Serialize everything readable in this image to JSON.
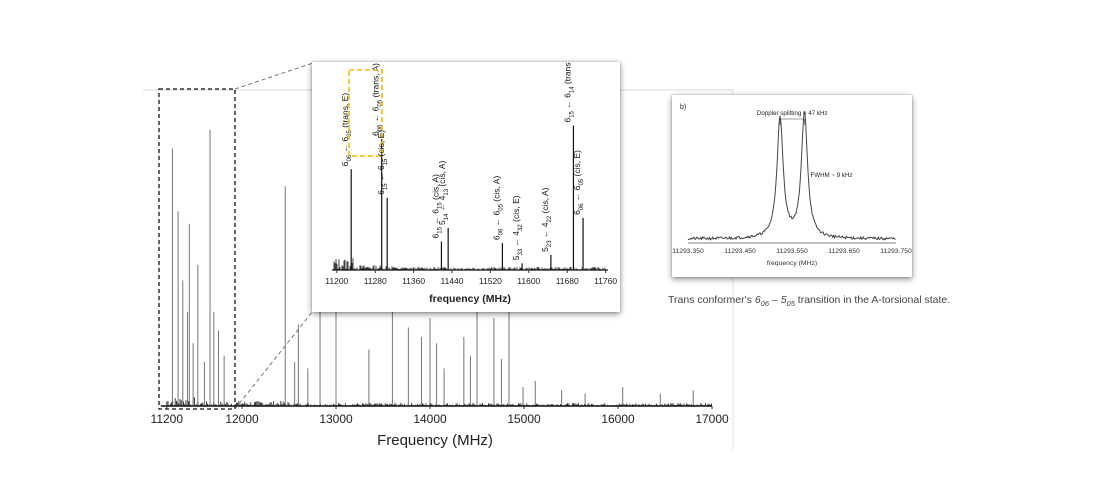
{
  "chart_data": [
    {
      "id": "main",
      "type": "line",
      "xlabel": "Frequency (MHz)",
      "xlim": [
        11000,
        17000
      ],
      "xticks": [
        11200,
        12000,
        13000,
        14000,
        15000,
        16000,
        17000
      ],
      "peaks": [
        {
          "x": 11260,
          "y": 0.82
        },
        {
          "x": 11320,
          "y": 0.62
        },
        {
          "x": 11370,
          "y": 0.4
        },
        {
          "x": 11420,
          "y": 0.3
        },
        {
          "x": 11440,
          "y": 0.58
        },
        {
          "x": 11480,
          "y": 0.2
        },
        {
          "x": 11530,
          "y": 0.45
        },
        {
          "x": 11600,
          "y": 0.14
        },
        {
          "x": 11660,
          "y": 0.88
        },
        {
          "x": 11700,
          "y": 0.3
        },
        {
          "x": 11750,
          "y": 0.24
        },
        {
          "x": 11810,
          "y": 0.16
        },
        {
          "x": 12460,
          "y": 0.7
        },
        {
          "x": 12560,
          "y": 0.14
        },
        {
          "x": 12600,
          "y": 0.26
        },
        {
          "x": 12700,
          "y": 0.12
        },
        {
          "x": 12830,
          "y": 0.3
        },
        {
          "x": 13000,
          "y": 0.31
        },
        {
          "x": 13350,
          "y": 0.18
        },
        {
          "x": 13600,
          "y": 0.3
        },
        {
          "x": 13770,
          "y": 0.25
        },
        {
          "x": 13910,
          "y": 0.22
        },
        {
          "x": 14000,
          "y": 0.28
        },
        {
          "x": 14070,
          "y": 0.2
        },
        {
          "x": 14150,
          "y": 0.12
        },
        {
          "x": 14360,
          "y": 0.22
        },
        {
          "x": 14430,
          "y": 0.16
        },
        {
          "x": 14500,
          "y": 0.3
        },
        {
          "x": 14680,
          "y": 0.28
        },
        {
          "x": 14760,
          "y": 0.15
        },
        {
          "x": 14840,
          "y": 0.3
        },
        {
          "x": 14990,
          "y": 0.06
        },
        {
          "x": 15120,
          "y": 0.08
        },
        {
          "x": 15400,
          "y": 0.05
        },
        {
          "x": 15650,
          "y": 0.04
        },
        {
          "x": 16050,
          "y": 0.06
        },
        {
          "x": 16450,
          "y": 0.04
        },
        {
          "x": 16800,
          "y": 0.05
        }
      ]
    },
    {
      "id": "zoom",
      "type": "line",
      "xlabel": "frequency (MHz)",
      "xlim": [
        11190,
        11765
      ],
      "xticks": [
        11200,
        11280,
        11360,
        11440,
        11520,
        11600,
        11680,
        11760
      ],
      "peaks": [
        {
          "x": 11230,
          "y": 0.6
        },
        {
          "x": 11293.55,
          "y": 0.78
        },
        {
          "x": 11305,
          "y": 0.43
        },
        {
          "x": 11418,
          "y": 0.17
        },
        {
          "x": 11432,
          "y": 0.25
        },
        {
          "x": 11545,
          "y": 0.16
        },
        {
          "x": 11586,
          "y": 0.04
        },
        {
          "x": 11646,
          "y": 0.09
        },
        {
          "x": 11693,
          "y": 0.86
        },
        {
          "x": 11713,
          "y": 0.31
        }
      ],
      "annotations": [
        {
          "x": 11230,
          "main": "6",
          "sub1": "06",
          "sub2": "05",
          "suffix": " (trans, E)"
        },
        {
          "x": 11293.55,
          "main": "6",
          "sub1": "06",
          "sub2": "05",
          "suffix": " (trans, A)",
          "highlight": true
        },
        {
          "x": 11305,
          "main": "6",
          "sub1": "15",
          "sub2": "15",
          "suffix": " (cis, E)"
        },
        {
          "x": 11418,
          "main": "6",
          "sub1": "15",
          "sub2": "15",
          "suffix": " (cis, A)"
        },
        {
          "x": 11432,
          "main": "5",
          "sub1": "14",
          "sub2": "13",
          "lower": "4",
          "suffix": " (cis, A)"
        },
        {
          "x": 11545,
          "main": "6",
          "sub1": "06",
          "sub2": "05",
          "suffix": " (cis, A)"
        },
        {
          "x": 11586,
          "main": "5",
          "sub1": "33",
          "sub2": "32",
          "lower": "4",
          "suffix": " (cis, E)"
        },
        {
          "x": 11646,
          "main": "5",
          "sub1": "23",
          "sub2": "22",
          "lower": "4",
          "suffix": " (cis, A)"
        },
        {
          "x": 11693,
          "main": "6",
          "sub1": "15",
          "sub2": "14",
          "suffix": " (trans, E)"
        },
        {
          "x": 11713,
          "main": "6",
          "sub1": "06",
          "sub2": "05",
          "suffix": " (cis, E)"
        }
      ],
      "highlight_color": "#f5b800"
    },
    {
      "id": "doppler",
      "type": "line",
      "panel_label": "b)",
      "xlabel": "frequency (MHz)",
      "xlim": [
        11293.35,
        11293.75
      ],
      "xticks": [
        "11293.350",
        "11293.450",
        "11293.550",
        "11293.650",
        "11293.750"
      ],
      "tick_values": [
        11293.35,
        11293.45,
        11293.55,
        11293.65,
        11293.75
      ],
      "peaks": [
        {
          "x": 11293.527,
          "y": 0.88,
          "fwhm": 0.009
        },
        {
          "x": 11293.574,
          "y": 0.92,
          "fwhm": 0.009
        }
      ],
      "annotations": {
        "splitting": "Doppler splitting ~ 47 kHz",
        "fwhm": "FWHM ~ 9 kHz"
      }
    }
  ],
  "caption": {
    "prefix": "Trans conformer's ",
    "term1": "6",
    "term1_sub": "06",
    "dash": " – ",
    "term2": "5",
    "term2_sub": "05",
    "suffix": " transition in the A-torsional state."
  }
}
